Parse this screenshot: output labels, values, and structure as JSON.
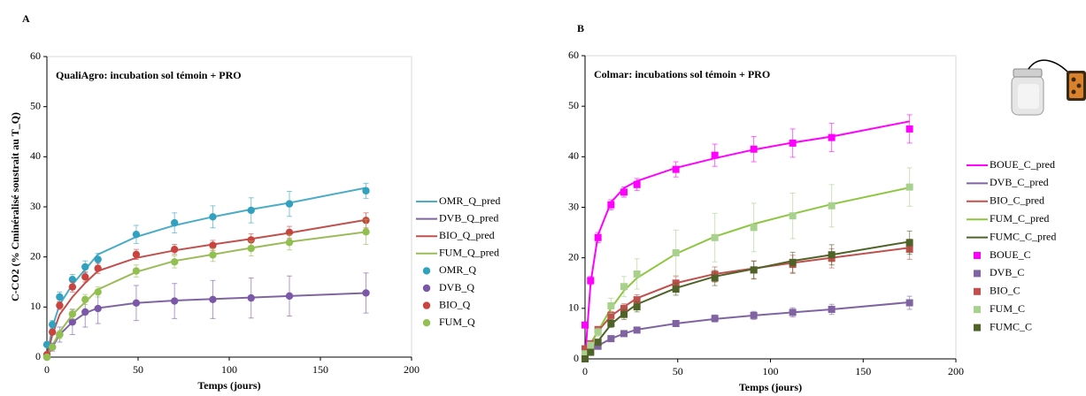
{
  "chart_data": [
    {
      "type": "line",
      "panel": "A",
      "title": "QualiAgro:  incubation sol témoin + PRO",
      "x_label": "Temps (jours)",
      "y_label": "C-CO2 (% Cminéralisé soustrait au T_Q)",
      "xlim": [
        0,
        200
      ],
      "xticks": [
        0,
        50,
        100,
        150,
        200
      ],
      "ylim": [
        0,
        60
      ],
      "yticks": [
        0,
        10,
        20,
        30,
        40,
        50,
        60
      ],
      "grid": false,
      "legend": "right",
      "x": [
        0,
        3,
        7,
        14,
        21,
        28,
        49,
        70,
        91,
        112,
        133,
        175
      ],
      "series": [
        {
          "name": "OMR_Q_pred",
          "color": "#4bacc6",
          "style": "line",
          "values": [
            0,
            6,
            10.5,
            14.5,
            17.5,
            20.5,
            24,
            26.3,
            28,
            29.5,
            30.8,
            33.8
          ]
        },
        {
          "name": "DVB_Q_pred",
          "color": "#8064a2",
          "style": "line",
          "values": [
            0,
            2,
            4.5,
            7,
            8.8,
            9.8,
            10.8,
            11.3,
            11.6,
            11.9,
            12.2,
            12.8
          ]
        },
        {
          "name": "BIO_Q_pred",
          "color": "#c0504d",
          "style": "line",
          "values": [
            0,
            4.5,
            8.5,
            12,
            14.8,
            17.2,
            19.8,
            21.3,
            22.5,
            23.6,
            24.8,
            27.4
          ]
        },
        {
          "name": "FUM_Q_pred",
          "color": "#9bbb59",
          "style": "line",
          "values": [
            0,
            2.3,
            5,
            8.5,
            11,
            13.5,
            17,
            19.2,
            20.5,
            21.8,
            23,
            25
          ]
        },
        {
          "name": "OMR_Q",
          "color": "#31a1bf",
          "style": "circle",
          "values": [
            2.5,
            6.5,
            12,
            15.5,
            18,
            19.5,
            24.5,
            26.8,
            28,
            29.3,
            30.6,
            33.2
          ],
          "errors": [
            0.5,
            0.8,
            1,
            1,
            1.2,
            1.2,
            1.8,
            2,
            2.2,
            2.5,
            2.5,
            1.5
          ]
        },
        {
          "name": "DVB_Q",
          "color": "#7a57a8",
          "style": "circle",
          "values": [
            0,
            2,
            4.5,
            7,
            9,
            9.7,
            10.8,
            11.2,
            11.5,
            11.8,
            12.2,
            12.8
          ],
          "errors": [
            0.3,
            0.8,
            1.5,
            2.5,
            3,
            3,
            3.5,
            3.5,
            3.8,
            4,
            4,
            4
          ]
        },
        {
          "name": "BIO_Q",
          "color": "#c9443e",
          "style": "circle",
          "values": [
            0.5,
            5,
            10.3,
            14,
            16,
            17.7,
            20.5,
            21.5,
            22.3,
            23.4,
            24.9,
            27.3
          ],
          "errors": [
            0.3,
            0.5,
            0.8,
            1,
            1,
            1,
            1,
            1,
            1,
            1.2,
            1.2,
            1.5
          ]
        },
        {
          "name": "FUM_Q",
          "color": "#92c050",
          "style": "circle",
          "values": [
            0,
            2,
            4.5,
            8.6,
            11.5,
            13,
            17.2,
            19,
            20.4,
            21.7,
            22.9,
            25
          ],
          "errors": [
            0.3,
            0.5,
            0.8,
            1,
            1,
            1,
            1.2,
            1.2,
            1.3,
            1.5,
            1.5,
            2.5
          ]
        }
      ]
    },
    {
      "type": "line",
      "panel": "B",
      "title": "Colmar:  incubations sol témoin + PRO",
      "x_label": "Temps (jours)",
      "xlim": [
        0,
        200
      ],
      "xticks": [
        0,
        50,
        100,
        150,
        200
      ],
      "ylim": [
        0,
        60
      ],
      "yticks": [
        0,
        10,
        20,
        30,
        40,
        50,
        60
      ],
      "grid": false,
      "legend": "right",
      "x": [
        0,
        3,
        7,
        14,
        21,
        28,
        49,
        70,
        91,
        112,
        133,
        175
      ],
      "series": [
        {
          "name": "BOUE_C_pred",
          "color": "#ff00ff",
          "style": "line",
          "values": [
            0,
            15,
            24.5,
            31,
            33.8,
            35.2,
            37.8,
            39.7,
            41.4,
            42.8,
            44,
            47
          ]
        },
        {
          "name": "DVB_C_pred",
          "color": "#8064a2",
          "style": "line",
          "values": [
            0,
            1.5,
            2.6,
            4,
            5,
            5.8,
            7,
            7.9,
            8.6,
            9.2,
            9.8,
            11.2
          ]
        },
        {
          "name": "BIO_C_pred",
          "color": "#c0504d",
          "style": "line",
          "values": [
            0,
            3,
            5.5,
            8.5,
            10.3,
            12,
            15,
            16.8,
            17.9,
            19,
            20,
            22
          ]
        },
        {
          "name": "FUM_C_pred",
          "color": "#8dc63f",
          "style": "line",
          "values": [
            0,
            2.8,
            5.5,
            10,
            13.5,
            16,
            20.8,
            24.2,
            26.7,
            28.7,
            30.6,
            33.9
          ]
        },
        {
          "name": "FUMC_C_pred",
          "color": "#4f6228",
          "style": "line",
          "values": [
            0,
            1.5,
            3.5,
            6.8,
            9,
            10.8,
            14,
            16.3,
            17.8,
            19.4,
            20.6,
            23.2
          ]
        },
        {
          "name": "BOUE_C",
          "color": "#ff00ff",
          "style": "square",
          "values": [
            6.7,
            15.5,
            24,
            30.5,
            33,
            34.5,
            37.5,
            40.3,
            41.5,
            42.7,
            43.8,
            45.5
          ],
          "errors": [
            0.5,
            0.8,
            1,
            1,
            1,
            1.2,
            1.5,
            2.2,
            2.5,
            2.8,
            2.8,
            2.8
          ]
        },
        {
          "name": "DVB_C",
          "color": "#8064a2",
          "style": "square",
          "values": [
            0,
            1.5,
            2.5,
            4,
            5,
            5.7,
            7,
            8,
            8.6,
            9.2,
            9.8,
            11.1
          ],
          "errors": [
            0.3,
            0.3,
            0.4,
            0.5,
            0.5,
            0.5,
            0.6,
            0.7,
            0.8,
            0.9,
            1,
            1.3
          ]
        },
        {
          "name": "BIO_C",
          "color": "#c0504d",
          "style": "square",
          "values": [
            2,
            3,
            5.8,
            8.6,
            10,
            11.7,
            15,
            16.7,
            17.6,
            18.7,
            19.9,
            21.7
          ],
          "errors": [
            0.3,
            0.5,
            0.6,
            0.8,
            0.9,
            1,
            1.3,
            1.5,
            1.7,
            1.8,
            1.9,
            2
          ]
        },
        {
          "name": "FUM_C",
          "color": "#a9d18e",
          "style": "square",
          "values": [
            1,
            2.7,
            5.3,
            10.5,
            14.3,
            16.8,
            21,
            24,
            26,
            28.3,
            30.3,
            34
          ],
          "errors": [
            0.3,
            0.5,
            0.8,
            1.5,
            2,
            3,
            4.5,
            4.8,
            4.8,
            4.5,
            4.2,
            3.8
          ]
        },
        {
          "name": "FUMC_C",
          "color": "#4f6228",
          "style": "square",
          "values": [
            0,
            1.3,
            3.3,
            7,
            8.8,
            10.3,
            13.8,
            16,
            17.6,
            19.1,
            20.6,
            23
          ],
          "errors": [
            0.2,
            0.3,
            0.5,
            0.8,
            1,
            1,
            1.2,
            1.5,
            1.8,
            2,
            2,
            2.3
          ]
        }
      ]
    }
  ]
}
